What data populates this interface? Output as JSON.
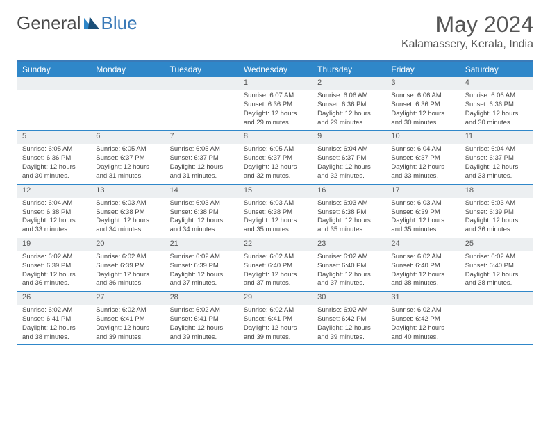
{
  "brand": {
    "part1": "General",
    "part2": "Blue"
  },
  "title": "May 2024",
  "location": "Kalamassery, Kerala, India",
  "colors": {
    "header_bg": "#2f87c9",
    "header_text": "#ffffff",
    "daynum_bg": "#eceff1",
    "week_border": "#2f87c9",
    "logo_blue": "#3a7ab8",
    "body_text": "#444444"
  },
  "daynames": [
    "Sunday",
    "Monday",
    "Tuesday",
    "Wednesday",
    "Thursday",
    "Friday",
    "Saturday"
  ],
  "weeks": [
    [
      {
        "n": "",
        "sr": "",
        "ss": "",
        "dl1": "",
        "dl2": ""
      },
      {
        "n": "",
        "sr": "",
        "ss": "",
        "dl1": "",
        "dl2": ""
      },
      {
        "n": "",
        "sr": "",
        "ss": "",
        "dl1": "",
        "dl2": ""
      },
      {
        "n": "1",
        "sr": "Sunrise: 6:07 AM",
        "ss": "Sunset: 6:36 PM",
        "dl1": "Daylight: 12 hours",
        "dl2": "and 29 minutes."
      },
      {
        "n": "2",
        "sr": "Sunrise: 6:06 AM",
        "ss": "Sunset: 6:36 PM",
        "dl1": "Daylight: 12 hours",
        "dl2": "and 29 minutes."
      },
      {
        "n": "3",
        "sr": "Sunrise: 6:06 AM",
        "ss": "Sunset: 6:36 PM",
        "dl1": "Daylight: 12 hours",
        "dl2": "and 30 minutes."
      },
      {
        "n": "4",
        "sr": "Sunrise: 6:06 AM",
        "ss": "Sunset: 6:36 PM",
        "dl1": "Daylight: 12 hours",
        "dl2": "and 30 minutes."
      }
    ],
    [
      {
        "n": "5",
        "sr": "Sunrise: 6:05 AM",
        "ss": "Sunset: 6:36 PM",
        "dl1": "Daylight: 12 hours",
        "dl2": "and 30 minutes."
      },
      {
        "n": "6",
        "sr": "Sunrise: 6:05 AM",
        "ss": "Sunset: 6:37 PM",
        "dl1": "Daylight: 12 hours",
        "dl2": "and 31 minutes."
      },
      {
        "n": "7",
        "sr": "Sunrise: 6:05 AM",
        "ss": "Sunset: 6:37 PM",
        "dl1": "Daylight: 12 hours",
        "dl2": "and 31 minutes."
      },
      {
        "n": "8",
        "sr": "Sunrise: 6:05 AM",
        "ss": "Sunset: 6:37 PM",
        "dl1": "Daylight: 12 hours",
        "dl2": "and 32 minutes."
      },
      {
        "n": "9",
        "sr": "Sunrise: 6:04 AM",
        "ss": "Sunset: 6:37 PM",
        "dl1": "Daylight: 12 hours",
        "dl2": "and 32 minutes."
      },
      {
        "n": "10",
        "sr": "Sunrise: 6:04 AM",
        "ss": "Sunset: 6:37 PM",
        "dl1": "Daylight: 12 hours",
        "dl2": "and 33 minutes."
      },
      {
        "n": "11",
        "sr": "Sunrise: 6:04 AM",
        "ss": "Sunset: 6:37 PM",
        "dl1": "Daylight: 12 hours",
        "dl2": "and 33 minutes."
      }
    ],
    [
      {
        "n": "12",
        "sr": "Sunrise: 6:04 AM",
        "ss": "Sunset: 6:38 PM",
        "dl1": "Daylight: 12 hours",
        "dl2": "and 33 minutes."
      },
      {
        "n": "13",
        "sr": "Sunrise: 6:03 AM",
        "ss": "Sunset: 6:38 PM",
        "dl1": "Daylight: 12 hours",
        "dl2": "and 34 minutes."
      },
      {
        "n": "14",
        "sr": "Sunrise: 6:03 AM",
        "ss": "Sunset: 6:38 PM",
        "dl1": "Daylight: 12 hours",
        "dl2": "and 34 minutes."
      },
      {
        "n": "15",
        "sr": "Sunrise: 6:03 AM",
        "ss": "Sunset: 6:38 PM",
        "dl1": "Daylight: 12 hours",
        "dl2": "and 35 minutes."
      },
      {
        "n": "16",
        "sr": "Sunrise: 6:03 AM",
        "ss": "Sunset: 6:38 PM",
        "dl1": "Daylight: 12 hours",
        "dl2": "and 35 minutes."
      },
      {
        "n": "17",
        "sr": "Sunrise: 6:03 AM",
        "ss": "Sunset: 6:39 PM",
        "dl1": "Daylight: 12 hours",
        "dl2": "and 35 minutes."
      },
      {
        "n": "18",
        "sr": "Sunrise: 6:03 AM",
        "ss": "Sunset: 6:39 PM",
        "dl1": "Daylight: 12 hours",
        "dl2": "and 36 minutes."
      }
    ],
    [
      {
        "n": "19",
        "sr": "Sunrise: 6:02 AM",
        "ss": "Sunset: 6:39 PM",
        "dl1": "Daylight: 12 hours",
        "dl2": "and 36 minutes."
      },
      {
        "n": "20",
        "sr": "Sunrise: 6:02 AM",
        "ss": "Sunset: 6:39 PM",
        "dl1": "Daylight: 12 hours",
        "dl2": "and 36 minutes."
      },
      {
        "n": "21",
        "sr": "Sunrise: 6:02 AM",
        "ss": "Sunset: 6:39 PM",
        "dl1": "Daylight: 12 hours",
        "dl2": "and 37 minutes."
      },
      {
        "n": "22",
        "sr": "Sunrise: 6:02 AM",
        "ss": "Sunset: 6:40 PM",
        "dl1": "Daylight: 12 hours",
        "dl2": "and 37 minutes."
      },
      {
        "n": "23",
        "sr": "Sunrise: 6:02 AM",
        "ss": "Sunset: 6:40 PM",
        "dl1": "Daylight: 12 hours",
        "dl2": "and 37 minutes."
      },
      {
        "n": "24",
        "sr": "Sunrise: 6:02 AM",
        "ss": "Sunset: 6:40 PM",
        "dl1": "Daylight: 12 hours",
        "dl2": "and 38 minutes."
      },
      {
        "n": "25",
        "sr": "Sunrise: 6:02 AM",
        "ss": "Sunset: 6:40 PM",
        "dl1": "Daylight: 12 hours",
        "dl2": "and 38 minutes."
      }
    ],
    [
      {
        "n": "26",
        "sr": "Sunrise: 6:02 AM",
        "ss": "Sunset: 6:41 PM",
        "dl1": "Daylight: 12 hours",
        "dl2": "and 38 minutes."
      },
      {
        "n": "27",
        "sr": "Sunrise: 6:02 AM",
        "ss": "Sunset: 6:41 PM",
        "dl1": "Daylight: 12 hours",
        "dl2": "and 39 minutes."
      },
      {
        "n": "28",
        "sr": "Sunrise: 6:02 AM",
        "ss": "Sunset: 6:41 PM",
        "dl1": "Daylight: 12 hours",
        "dl2": "and 39 minutes."
      },
      {
        "n": "29",
        "sr": "Sunrise: 6:02 AM",
        "ss": "Sunset: 6:41 PM",
        "dl1": "Daylight: 12 hours",
        "dl2": "and 39 minutes."
      },
      {
        "n": "30",
        "sr": "Sunrise: 6:02 AM",
        "ss": "Sunset: 6:42 PM",
        "dl1": "Daylight: 12 hours",
        "dl2": "and 39 minutes."
      },
      {
        "n": "31",
        "sr": "Sunrise: 6:02 AM",
        "ss": "Sunset: 6:42 PM",
        "dl1": "Daylight: 12 hours",
        "dl2": "and 40 minutes."
      },
      {
        "n": "",
        "sr": "",
        "ss": "",
        "dl1": "",
        "dl2": ""
      }
    ]
  ]
}
